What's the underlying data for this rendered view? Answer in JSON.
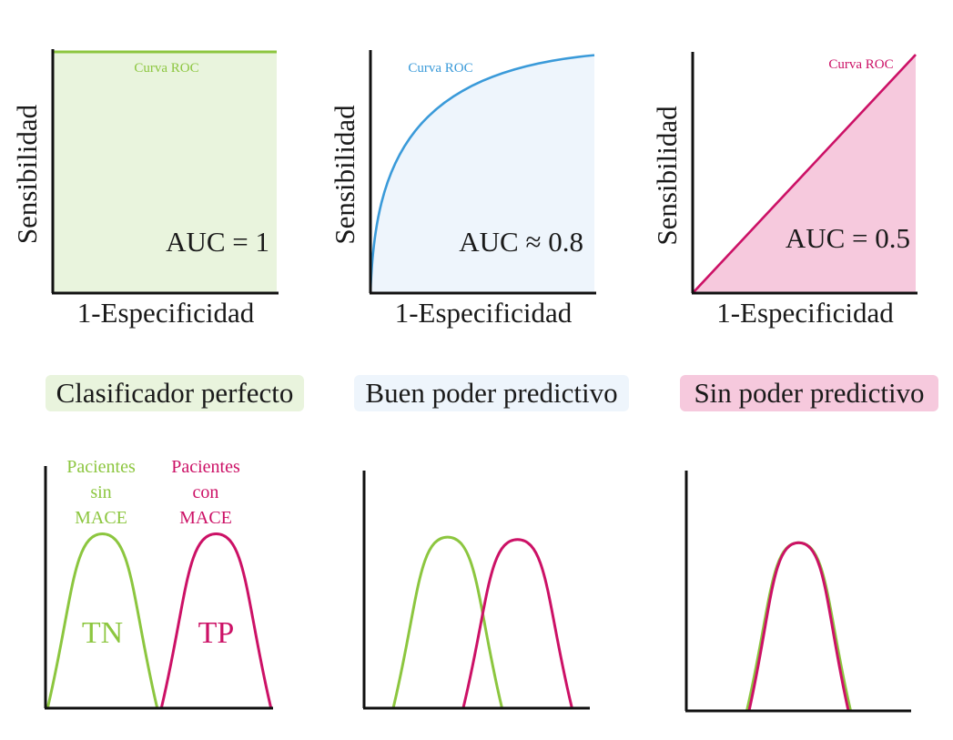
{
  "colors": {
    "green": "#8cc63f",
    "green_fill": "#e9f4dd",
    "blue": "#3a9ad9",
    "blue_fill": "#eef5fc",
    "magenta": "#cc1166",
    "magenta_fill": "#f6c9dd",
    "axis": "#111111"
  },
  "chart_data": [
    {
      "type": "line",
      "title": "",
      "xlabel": "1-Especificidad",
      "ylabel": "Sensibilidad",
      "xlim": [
        0,
        1
      ],
      "ylim": [
        0,
        1
      ],
      "series": [
        {
          "name": "Curva ROC",
          "x": [
            0,
            0,
            1
          ],
          "y": [
            0,
            1,
            1
          ]
        }
      ],
      "annotation": "AUC = 1",
      "classifier_label": "Clasificador perfecto",
      "color": "green"
    },
    {
      "type": "line",
      "title": "",
      "xlabel": "1-Especificidad",
      "ylabel": "Sensibilidad",
      "xlim": [
        0,
        1
      ],
      "ylim": [
        0,
        1
      ],
      "series": [
        {
          "name": "Curva ROC",
          "x": [
            0,
            0.05,
            0.1,
            0.2,
            0.3,
            0.45,
            0.6,
            0.8,
            1
          ],
          "y": [
            0,
            0.52,
            0.68,
            0.81,
            0.88,
            0.93,
            0.96,
            0.98,
            0.99
          ]
        }
      ],
      "annotation": "AUC ≈ 0.8",
      "classifier_label": "Buen poder predictivo",
      "color": "blue"
    },
    {
      "type": "line",
      "title": "",
      "xlabel": "1-Especificidad",
      "ylabel": "Sensibilidad",
      "xlim": [
        0,
        1
      ],
      "ylim": [
        0,
        1
      ],
      "series": [
        {
          "name": "Curva ROC",
          "x": [
            0,
            1
          ],
          "y": [
            0,
            1
          ]
        }
      ],
      "annotation": "AUC = 0.5",
      "classifier_label": "Sin poder predictivo",
      "color": "magenta"
    },
    {
      "type": "area",
      "title": "",
      "xlim": [
        0,
        1
      ],
      "ylim": [
        0,
        1
      ],
      "series": [
        {
          "name": "Pacientes sin MACE",
          "center": 0.25,
          "halfwidth": 0.24,
          "peak": 0.72,
          "region_label": "TN",
          "color": "green"
        },
        {
          "name": "Pacientes con MACE",
          "center": 0.75,
          "halfwidth": 0.24,
          "peak": 0.72,
          "region_label": "TP",
          "color": "magenta"
        }
      ]
    },
    {
      "type": "area",
      "title": "",
      "xlim": [
        0,
        1
      ],
      "ylim": [
        0,
        1
      ],
      "series": [
        {
          "name": "",
          "center": 0.37,
          "halfwidth": 0.24,
          "peak": 0.72,
          "color": "green"
        },
        {
          "name": "",
          "center": 0.68,
          "halfwidth": 0.24,
          "peak": 0.71,
          "color": "magenta"
        }
      ]
    },
    {
      "type": "area",
      "title": "",
      "xlim": [
        0,
        1
      ],
      "ylim": [
        0,
        1
      ],
      "series": [
        {
          "name": "",
          "center": 0.5,
          "halfwidth": 0.23,
          "peak": 0.7,
          "color": "green"
        },
        {
          "name": "",
          "center": 0.5,
          "halfwidth": 0.22,
          "peak": 0.7,
          "color": "magenta"
        }
      ]
    }
  ]
}
